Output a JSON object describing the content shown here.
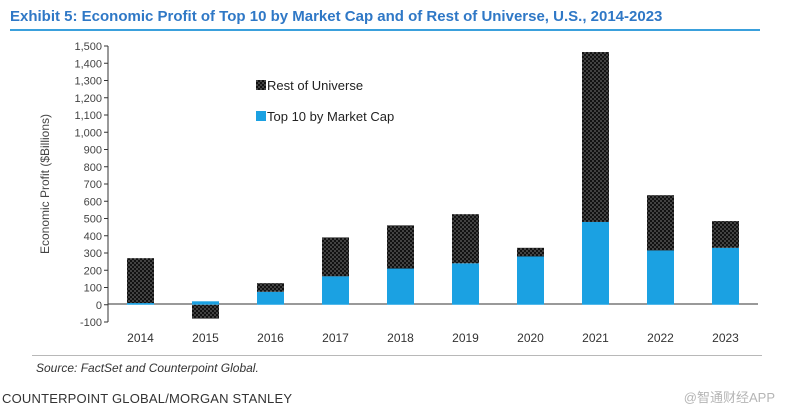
{
  "header": {
    "title": "Exhibit 5: Economic Profit of Top 10 by Market Cap and of Rest of Universe, U.S., 2014-2023"
  },
  "footer": {
    "source": "Source: FactSet and Counterpoint Global.",
    "credit": "COUNTERPOINT GLOBAL/MORGAN STANLEY",
    "watermark": "@智通财经APP"
  },
  "colors": {
    "top10": "#1ba1e2",
    "rest_fill": "#111111",
    "rest_dots": "#ffffff"
  },
  "chart_data": {
    "type": "bar",
    "stacked": true,
    "title": "Exhibit 5: Economic Profit of Top 10 by Market Cap and of Rest of Universe, U.S., 2014-2023",
    "xlabel": "",
    "ylabel": "Economic Profit ($Billions)",
    "ylim": [
      -100,
      1500
    ],
    "yticks": [
      -100,
      0,
      100,
      200,
      300,
      400,
      500,
      600,
      700,
      800,
      900,
      1000,
      1100,
      1200,
      1300,
      1400,
      1500
    ],
    "ytick_labels": [
      "-100",
      "0",
      "100",
      "200",
      "300",
      "400",
      "500",
      "600",
      "700",
      "800",
      "900",
      "1,000",
      "1,100",
      "1,200",
      "1,300",
      "1,400",
      "1,500"
    ],
    "categories": [
      "2014",
      "2015",
      "2016",
      "2017",
      "2018",
      "2019",
      "2020",
      "2021",
      "2022",
      "2023"
    ],
    "series": [
      {
        "name": "Top 10 by Market Cap",
        "values": [
          10,
          20,
          75,
          165,
          210,
          240,
          280,
          480,
          315,
          330
        ]
      },
      {
        "name": "Rest of Universe",
        "values": [
          260,
          -80,
          50,
          225,
          250,
          285,
          50,
          985,
          320,
          155
        ]
      }
    ],
    "legend": {
      "position": "top-left",
      "entries": [
        "Rest of Universe",
        "Top 10 by Market Cap"
      ]
    },
    "grid": false
  }
}
